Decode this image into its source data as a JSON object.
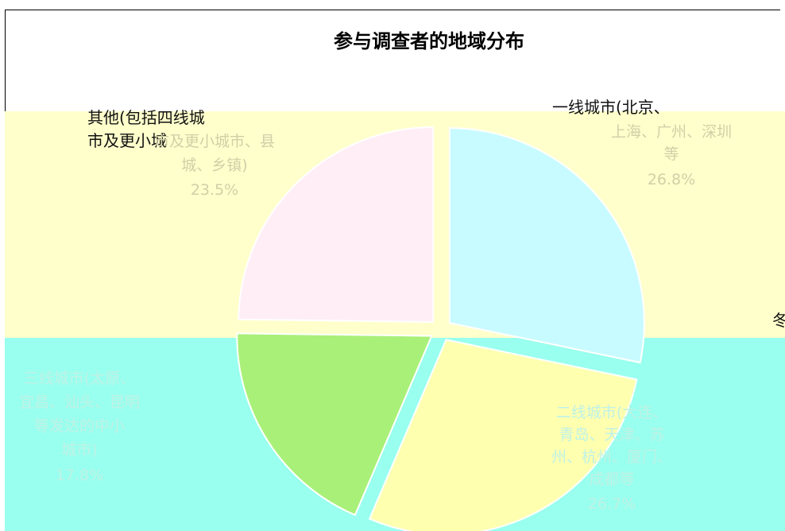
{
  "chart_data": {
    "type": "pie",
    "title": "参与调查者的地域分布",
    "slices": [
      {
        "name": "一线城市(北京、上海、广州、深圳等",
        "value": 26.8,
        "value_label": "26.8%",
        "color": "#c8fbff"
      },
      {
        "name": "二线城市(大连、青岛、天津、苏州、杭州、厦门、成都等",
        "value": 26.7,
        "value_label": "26.7%",
        "color": "#ffffb0"
      },
      {
        "name": "三线城市(太原、宜昌、汕头、昆明等发达的中小城市)",
        "value": 17.8,
        "value_label": "17.8%",
        "color": "#a9f078"
      },
      {
        "name": "其他(包括四线城市及更小城市、县城、乡镇)",
        "value": 23.5,
        "value_label": "23.5%",
        "color": "#ffeef6"
      }
    ]
  },
  "header_fragments": {
    "left_line1": "其他(包括四线城",
    "left_line2": "市及更小城",
    "right_line": "一线城市(北京、"
  },
  "right_edge_text": "冬"
}
